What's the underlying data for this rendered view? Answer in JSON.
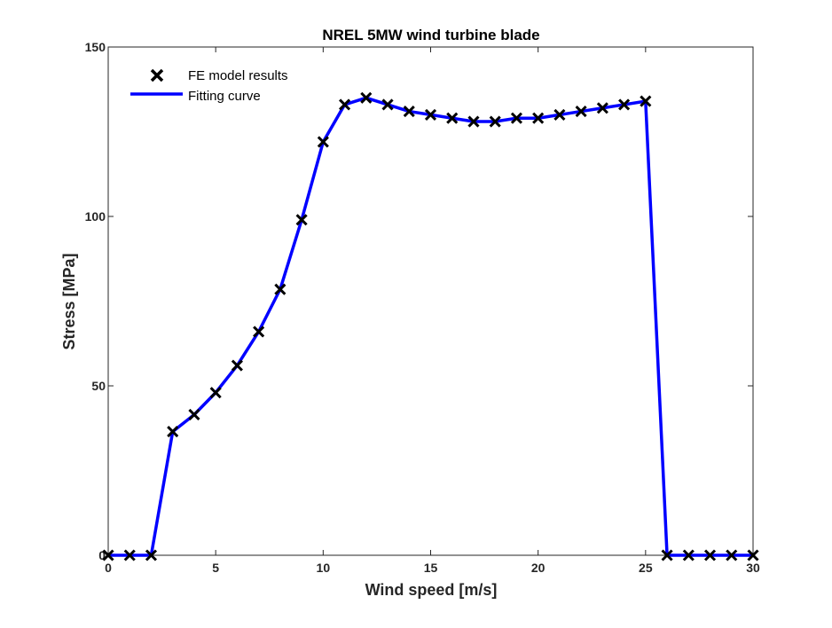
{
  "chart_data": {
    "type": "line",
    "title": "NREL 5MW wind turbine blade",
    "xlabel": "Wind speed [m/s]",
    "ylabel": "Stress [MPa]",
    "xlim": [
      0,
      30
    ],
    "ylim": [
      0,
      150
    ],
    "xticks": [
      0,
      5,
      10,
      15,
      20,
      25,
      30
    ],
    "yticks": [
      0,
      50,
      100,
      150
    ],
    "xtick_labels": [
      "0",
      "5",
      "10",
      "15",
      "20",
      "25",
      "30"
    ],
    "ytick_labels": [
      "0",
      "50",
      "100",
      "150"
    ],
    "grid": false,
    "legend_position": "top-left",
    "series": [
      {
        "name": "FE model results",
        "style": "markers",
        "marker": "x",
        "color": "#000000",
        "x": [
          0,
          1,
          2,
          3,
          4,
          5,
          6,
          7,
          8,
          9,
          10,
          11,
          12,
          13,
          14,
          15,
          16,
          17,
          18,
          19,
          20,
          21,
          22,
          23,
          24,
          25,
          26,
          27,
          28,
          29,
          30
        ],
        "y": [
          0,
          0,
          0,
          36.5,
          41.5,
          48,
          56,
          66,
          78.5,
          99,
          122,
          133,
          135,
          133,
          131,
          130,
          129,
          128,
          128,
          129,
          129,
          130,
          131,
          132,
          133,
          134,
          0,
          0,
          0,
          0,
          0
        ]
      },
      {
        "name": "Fitting curve",
        "style": "line",
        "color": "#0000ff",
        "x": [
          0,
          1,
          2,
          3,
          4,
          5,
          6,
          7,
          8,
          9,
          10,
          11,
          12,
          13,
          14,
          15,
          16,
          17,
          18,
          19,
          20,
          21,
          22,
          23,
          24,
          25,
          26,
          27,
          28,
          29,
          30
        ],
        "y": [
          0,
          0,
          0,
          36.5,
          41.5,
          48,
          56,
          66,
          78.5,
          99,
          122,
          133,
          135,
          133,
          131,
          130,
          129,
          128,
          128,
          129,
          129,
          130,
          131,
          132,
          133,
          134,
          0,
          0,
          0,
          0,
          0
        ]
      }
    ]
  }
}
